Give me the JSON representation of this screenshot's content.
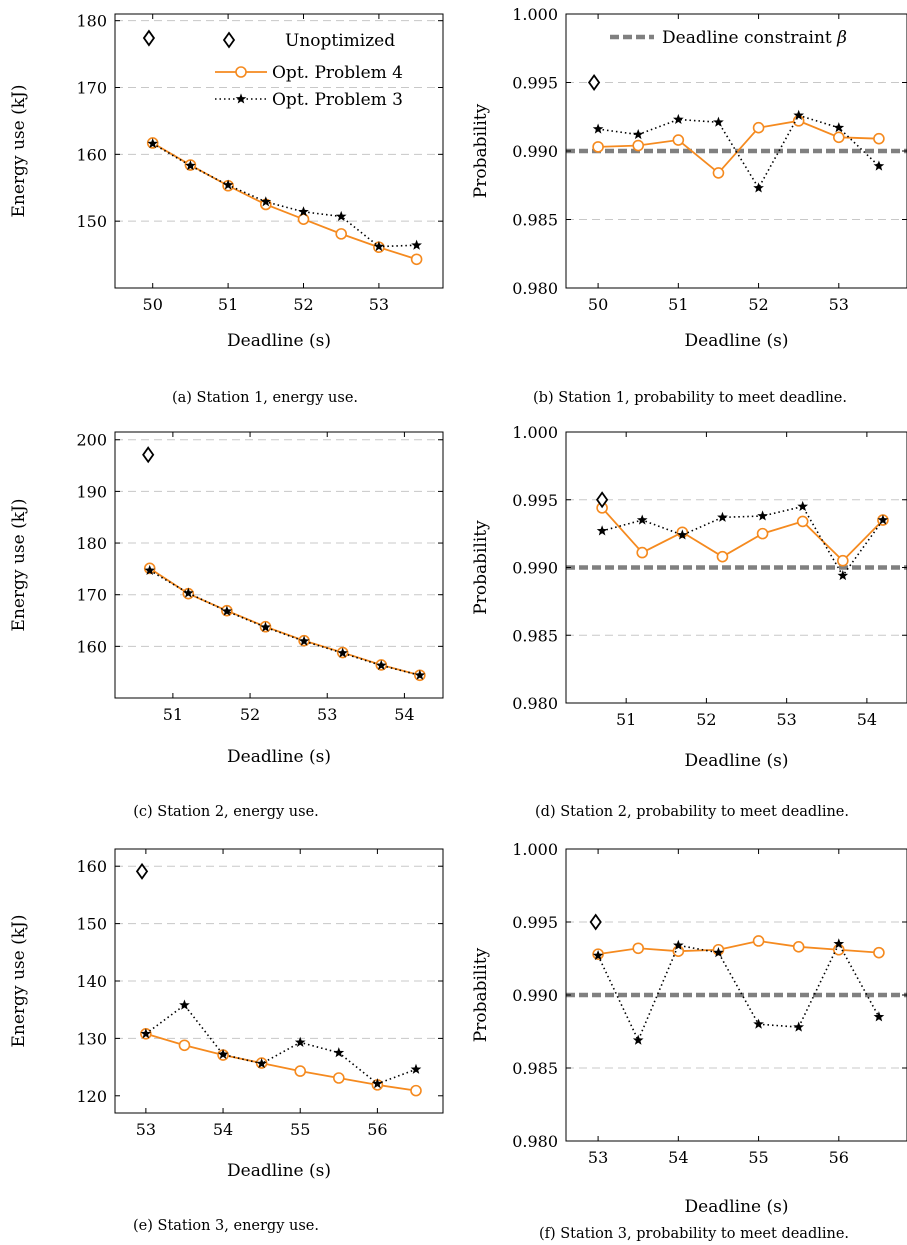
{
  "colors": {
    "opt4": "#f58a1f",
    "opt3": "#000000",
    "unoptimized": "#000000",
    "constraint": "#808080",
    "grid": "#c8c8c8"
  },
  "legend_energy": {
    "unoptimized": "Unoptimized",
    "opt4": "Opt. Problem 4",
    "opt3": "Opt. Problem 3"
  },
  "legend_prob": {
    "constraint_prefix": "Deadline constraint ",
    "constraint_symbol": "β"
  },
  "chart_data": [
    {
      "id": "a",
      "type": "line",
      "caption": "(a) Station 1, energy use.",
      "xlabel": "Deadline (s)",
      "ylabel": "Energy use (kJ)",
      "xlim": [
        49.5,
        53.85
      ],
      "ylim": [
        140,
        181
      ],
      "xticks": [
        50,
        51,
        52,
        53
      ],
      "xtick_labels": [
        "50",
        "51",
        "52",
        "53"
      ],
      "yticks": [
        150,
        160,
        170,
        180
      ],
      "ytick_labels": [
        "150",
        "160",
        "170",
        "180"
      ],
      "gridlines": [
        150,
        160,
        170,
        180
      ],
      "legend": "top-right",
      "unoptimized": {
        "x": 49.95,
        "y": 177.4
      },
      "series": [
        {
          "key": "opt4",
          "x": [
            50,
            50.5,
            51,
            51.5,
            52,
            52.5,
            53,
            53.5
          ],
          "y": [
            161.7,
            158.4,
            155.3,
            152.5,
            150.3,
            148.1,
            146.1,
            144.3
          ]
        },
        {
          "key": "opt3",
          "x": [
            50,
            50.5,
            51,
            51.5,
            52,
            52.5,
            53,
            53.5
          ],
          "y": [
            161.6,
            158.3,
            155.4,
            152.9,
            151.4,
            150.7,
            146.2,
            146.4
          ]
        }
      ]
    },
    {
      "id": "b",
      "type": "line",
      "caption": "(b) Station 1, probability to meet deadline.",
      "xlabel": "Deadline (s)",
      "ylabel": "Probability",
      "xlim": [
        49.6,
        53.85
      ],
      "ylim": [
        0.98,
        1.0
      ],
      "xticks": [
        50,
        51,
        52,
        53
      ],
      "xtick_labels": [
        "50",
        "51",
        "52",
        "53"
      ],
      "yticks": [
        0.98,
        0.985,
        0.99,
        0.995,
        1.0
      ],
      "ytick_labels": [
        "0.980",
        "0.985",
        "0.990",
        "0.995",
        "1.000"
      ],
      "gridlines": [
        0.985,
        0.995
      ],
      "constraint": 0.99,
      "legend": "top-right",
      "unoptimized": {
        "x": 49.95,
        "y": 0.995
      },
      "series": [
        {
          "key": "opt4",
          "x": [
            50,
            50.5,
            51,
            51.5,
            52,
            52.5,
            53,
            53.5
          ],
          "y": [
            0.9903,
            0.9904,
            0.9908,
            0.9884,
            0.9917,
            0.9922,
            0.991,
            0.9909
          ]
        },
        {
          "key": "opt3",
          "x": [
            50,
            50.5,
            51,
            51.5,
            52,
            52.5,
            53,
            53.5
          ],
          "y": [
            0.9916,
            0.9912,
            0.9923,
            0.9921,
            0.9873,
            0.9926,
            0.9917,
            0.9889
          ]
        }
      ]
    },
    {
      "id": "c",
      "type": "line",
      "caption": "(c) Station 2, energy use.",
      "xlabel": "Deadline (s)",
      "ylabel": "Energy use (kJ)",
      "xlim": [
        50.25,
        54.5
      ],
      "ylim": [
        150,
        201.5
      ],
      "xticks": [
        51,
        52,
        53,
        54
      ],
      "xtick_labels": [
        "51",
        "52",
        "53",
        "54"
      ],
      "yticks": [
        160,
        170,
        180,
        190,
        200
      ],
      "ytick_labels": [
        "160",
        "170",
        "180",
        "190",
        "200"
      ],
      "gridlines": [
        160,
        170,
        180,
        190,
        200
      ],
      "unoptimized": {
        "x": 50.68,
        "y": 197.1
      },
      "series": [
        {
          "key": "opt4",
          "x": [
            50.7,
            51.2,
            51.7,
            52.2,
            52.7,
            53.2,
            53.7,
            54.2
          ],
          "y": [
            175.1,
            170.2,
            166.9,
            163.8,
            161.1,
            158.8,
            156.4,
            154.4
          ]
        },
        {
          "key": "opt3",
          "x": [
            50.7,
            51.2,
            51.7,
            52.2,
            52.7,
            53.2,
            53.7,
            54.2
          ],
          "y": [
            174.7,
            170.3,
            166.8,
            163.7,
            161.0,
            158.7,
            156.3,
            154.4
          ]
        }
      ]
    },
    {
      "id": "d",
      "type": "line",
      "caption": "(d) Station 2, probability to meet deadline.",
      "xlabel": "Deadline (s)",
      "ylabel": "Probability",
      "xlim": [
        50.25,
        54.5
      ],
      "ylim": [
        0.98,
        1.0
      ],
      "xticks": [
        51,
        52,
        53,
        54
      ],
      "xtick_labels": [
        "51",
        "52",
        "53",
        "54"
      ],
      "yticks": [
        0.98,
        0.985,
        0.99,
        0.995,
        1.0
      ],
      "ytick_labels": [
        "0.980",
        "0.985",
        "0.990",
        "0.995",
        "1.000"
      ],
      "gridlines": [
        0.985,
        0.995
      ],
      "constraint": 0.99,
      "unoptimized": {
        "x": 50.7,
        "y": 0.995
      },
      "series": [
        {
          "key": "opt4",
          "x": [
            50.7,
            51.2,
            51.7,
            52.2,
            52.7,
            53.2,
            53.7,
            54.2
          ],
          "y": [
            0.9944,
            0.9911,
            0.9926,
            0.9908,
            0.9925,
            0.9934,
            0.9905,
            0.9935
          ]
        },
        {
          "key": "opt3",
          "x": [
            50.7,
            51.2,
            51.7,
            52.2,
            52.7,
            53.2,
            53.7,
            54.2
          ],
          "y": [
            0.9927,
            0.9935,
            0.9924,
            0.9937,
            0.9938,
            0.9945,
            0.9894,
            0.9935
          ]
        }
      ]
    },
    {
      "id": "e",
      "type": "line",
      "caption": "(e) Station 3, energy use.",
      "xlabel": "Deadline (s)",
      "ylabel": "Energy use (kJ)",
      "xlim": [
        52.6,
        56.85
      ],
      "ylim": [
        117,
        163
      ],
      "xticks": [
        53,
        54,
        55,
        56
      ],
      "xtick_labels": [
        "53",
        "54",
        "55",
        "56"
      ],
      "yticks": [
        120,
        130,
        140,
        150,
        160
      ],
      "ytick_labels": [
        "120",
        "130",
        "140",
        "150",
        "160"
      ],
      "gridlines": [
        130,
        140,
        150,
        160
      ],
      "unoptimized": {
        "x": 52.95,
        "y": 159.1
      },
      "series": [
        {
          "key": "opt4",
          "x": [
            53,
            53.5,
            54,
            54.5,
            55,
            55.5,
            56,
            56.5
          ],
          "y": [
            130.8,
            128.8,
            127.1,
            125.7,
            124.3,
            123.1,
            121.9,
            120.9
          ]
        },
        {
          "key": "opt3",
          "x": [
            53,
            53.5,
            54,
            54.5,
            55,
            55.5,
            56,
            56.5
          ],
          "y": [
            130.8,
            135.8,
            127.2,
            125.6,
            129.3,
            127.5,
            122.1,
            124.6
          ]
        }
      ]
    },
    {
      "id": "f",
      "type": "line",
      "caption": "(f) Station 3, probability to meet deadline.",
      "xlabel": "Deadline (s)",
      "ylabel": "Probability",
      "xlim": [
        52.6,
        56.85
      ],
      "ylim": [
        0.98,
        1.0
      ],
      "xticks": [
        53,
        54,
        55,
        56
      ],
      "xtick_labels": [
        "53",
        "54",
        "55",
        "56"
      ],
      "yticks": [
        0.98,
        0.985,
        0.99,
        0.995,
        1.0
      ],
      "ytick_labels": [
        "0.980",
        "0.985",
        "0.990",
        "0.995",
        "1.000"
      ],
      "gridlines": [
        0.985,
        0.995
      ],
      "constraint": 0.99,
      "unoptimized": {
        "x": 52.97,
        "y": 0.995
      },
      "series": [
        {
          "key": "opt4",
          "x": [
            53,
            53.5,
            54,
            54.5,
            55,
            55.5,
            56,
            56.5
          ],
          "y": [
            0.9928,
            0.9932,
            0.993,
            0.9931,
            0.9937,
            0.9933,
            0.9931,
            0.9929
          ]
        },
        {
          "key": "opt3",
          "x": [
            53,
            53.5,
            54,
            54.5,
            55,
            55.5,
            56,
            56.5
          ],
          "y": [
            0.9927,
            0.9869,
            0.9934,
            0.9929,
            0.988,
            0.9878,
            0.9935,
            0.9885
          ]
        }
      ]
    }
  ]
}
